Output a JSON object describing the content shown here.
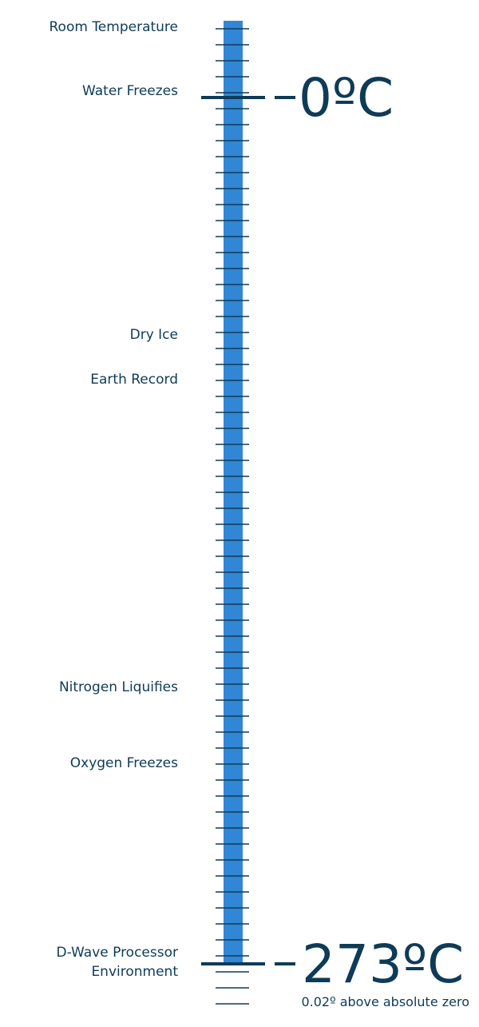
{
  "thermometer": {
    "tube_color": "#3286d6",
    "tick_color": "#0e3b57",
    "text_color": "#0e3b57",
    "tick_count": 62
  },
  "labels": {
    "room_temperature": "Room Temperature",
    "water_freezes": "Water Freezes",
    "dry_ice": "Dry Ice",
    "earth_record": "Earth Record",
    "nitrogen_liquifies": "Nitrogen Liquifies",
    "oxygen_freezes": "Oxygen Freezes",
    "dwave_line1": "D-Wave Processor",
    "dwave_line2": "Environment"
  },
  "markers": {
    "zero": "–0ºC",
    "absolute": "–273ºC",
    "absolute_note": "0.02º above absolute zero"
  }
}
